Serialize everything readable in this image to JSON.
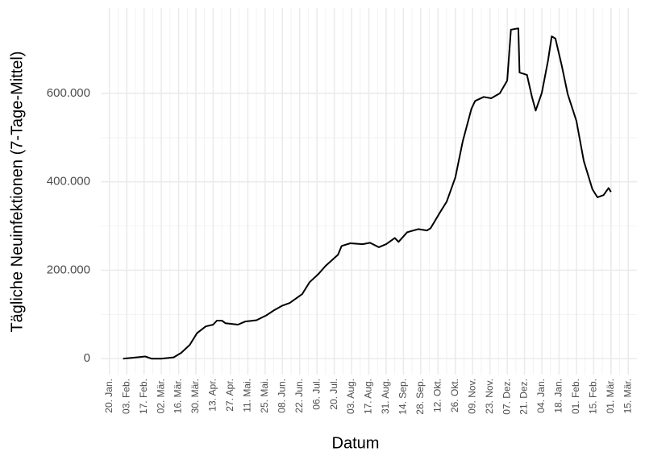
{
  "chart_data": {
    "type": "line",
    "xlabel": "Datum",
    "ylabel": "Tägliche Neuinfektionen (7-Tage-Mittel)",
    "x": [
      11,
      22,
      29,
      34,
      42,
      52,
      58,
      65,
      71,
      78,
      84,
      87,
      91,
      94,
      104,
      110,
      119,
      127,
      133,
      140,
      146,
      156,
      162,
      169,
      175,
      185,
      188,
      195,
      205,
      211,
      218,
      224,
      231,
      234,
      241,
      250,
      257,
      260,
      267,
      273,
      280,
      286,
      293,
      296,
      303,
      309,
      316,
      322,
      325,
      331,
      332,
      338,
      342,
      345,
      350,
      355,
      358,
      361,
      366,
      371,
      378,
      384,
      391,
      395,
      400,
      404,
      406
    ],
    "series": [
      {
        "name": "Neuinfektionen",
        "color": "#000000",
        "values": [
          0,
          3000,
          5000,
          0,
          0,
          3000,
          13000,
          31000,
          58000,
          73000,
          77000,
          86000,
          86000,
          80000,
          77000,
          84000,
          87000,
          98000,
          109000,
          120000,
          126000,
          146000,
          173000,
          191000,
          210000,
          235000,
          255000,
          261000,
          259000,
          262000,
          252000,
          259000,
          273000,
          264000,
          286000,
          293000,
          290000,
          295000,
          328000,
          355000,
          410000,
          492000,
          565000,
          583000,
          592000,
          589000,
          600000,
          629000,
          744000,
          747000,
          647000,
          642000,
          592000,
          561000,
          601000,
          674000,
          729000,
          724000,
          665000,
          598000,
          538000,
          447000,
          383000,
          365000,
          370000,
          386000,
          377000
        ]
      }
    ],
    "xlim": [
      -7,
      427
    ],
    "xticks": [
      {
        "value": 0,
        "label": "20. Jan."
      },
      {
        "value": 14,
        "label": "03. Feb."
      },
      {
        "value": 28,
        "label": "17. Feb."
      },
      {
        "value": 42,
        "label": "02. Mär."
      },
      {
        "value": 56,
        "label": "16. Mär."
      },
      {
        "value": 70,
        "label": "30. Mär."
      },
      {
        "value": 84,
        "label": "13. Apr."
      },
      {
        "value": 98,
        "label": "27. Apr."
      },
      {
        "value": 112,
        "label": "11. Mai."
      },
      {
        "value": 126,
        "label": "25. Mai."
      },
      {
        "value": 140,
        "label": "08. Jun."
      },
      {
        "value": 154,
        "label": "22. Jun."
      },
      {
        "value": 168,
        "label": "06. Jul."
      },
      {
        "value": 182,
        "label": "20. Jul."
      },
      {
        "value": 196,
        "label": "03. Aug."
      },
      {
        "value": 210,
        "label": "17. Aug."
      },
      {
        "value": 224,
        "label": "31. Aug."
      },
      {
        "value": 238,
        "label": "14. Sep."
      },
      {
        "value": 252,
        "label": "28. Sep."
      },
      {
        "value": 266,
        "label": "12. Okt."
      },
      {
        "value": 280,
        "label": "26. Okt."
      },
      {
        "value": 294,
        "label": "09. Nov."
      },
      {
        "value": 308,
        "label": "23. Nov."
      },
      {
        "value": 322,
        "label": "07. Dez."
      },
      {
        "value": 336,
        "label": "21. Dez."
      },
      {
        "value": 350,
        "label": "04. Jan."
      },
      {
        "value": 364,
        "label": "18. Jan."
      },
      {
        "value": 378,
        "label": "01. Feb."
      },
      {
        "value": 392,
        "label": "15. Feb."
      },
      {
        "value": 406,
        "label": "01. Mär."
      },
      {
        "value": 420,
        "label": "15. Mär."
      }
    ],
    "ylim": [
      -36000,
      793000
    ],
    "yticks": [
      0,
      {
        "value": 200000,
        "label": "200.000"
      },
      {
        "value": 400000,
        "label": "400.000"
      },
      {
        "value": 600000,
        "label": "600.000"
      }
    ],
    "grid": true
  }
}
